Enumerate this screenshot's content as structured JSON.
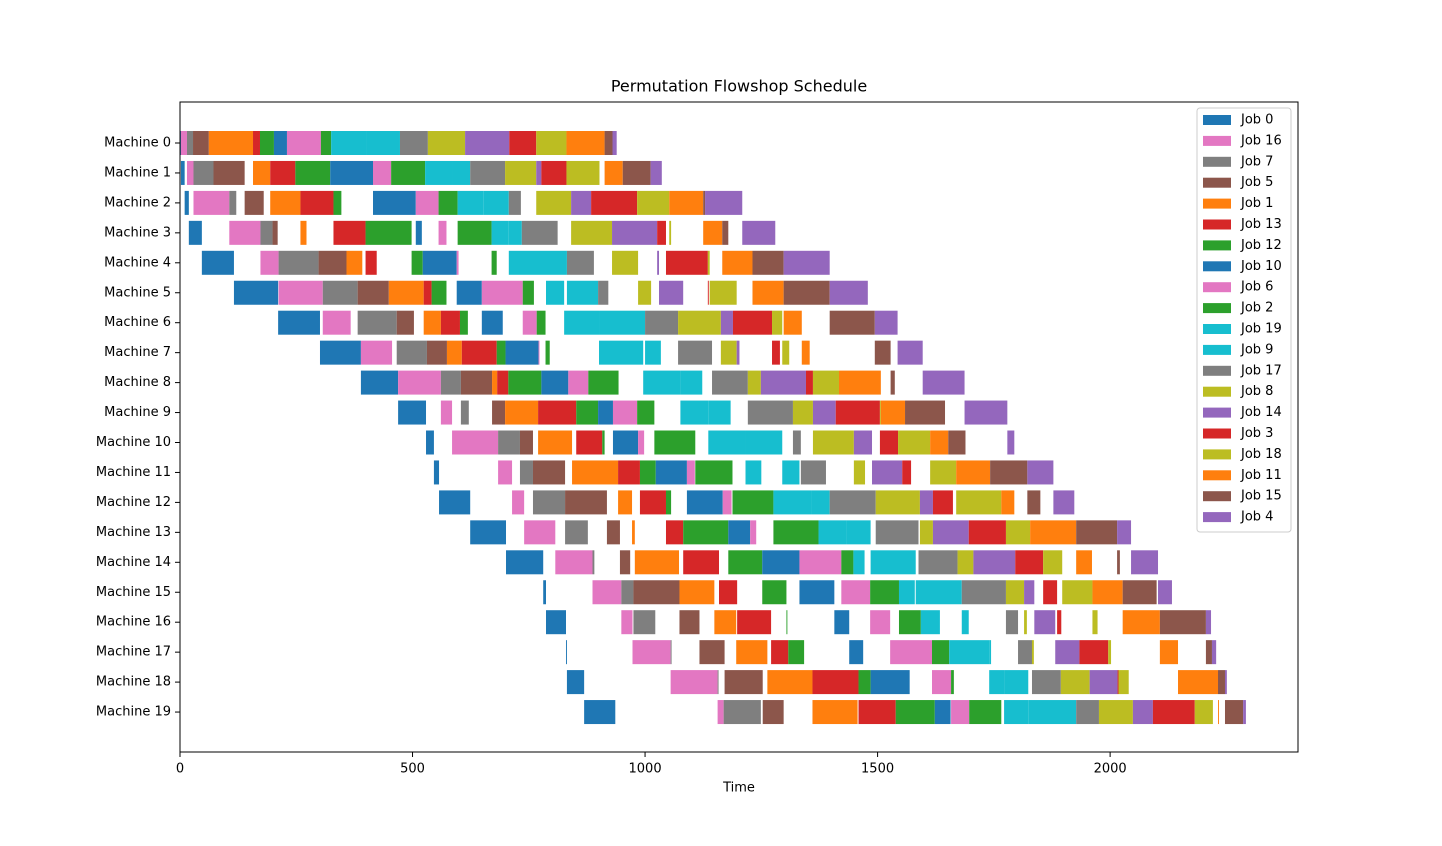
{
  "chart_data": {
    "type": "gantt",
    "title": "Permutation Flowshop Schedule",
    "x_label": "Time",
    "categories": [
      "Machine 0",
      "Machine 1",
      "Machine 2",
      "Machine 3",
      "Machine 4",
      "Machine 5",
      "Machine 6",
      "Machine 7",
      "Machine 8",
      "Machine 9",
      "Machine 10",
      "Machine 11",
      "Machine 12",
      "Machine 13",
      "Machine 14",
      "Machine 15",
      "Machine 16",
      "Machine 17",
      "Machine 18",
      "Machine 19"
    ],
    "xlim": [
      0,
      2404
    ],
    "xticks": [
      0,
      500,
      1000,
      1500,
      2000
    ],
    "legend": "upper right",
    "series": [
      {
        "name": "Job 0",
        "color": "#1f77b4",
        "values": [
          2,
          8,
          9,
          28,
          69,
          95,
          90,
          88,
          80,
          60,
          17,
          11,
          67,
          77,
          80,
          6,
          43,
          2,
          37,
          67
        ]
      },
      {
        "name": "Job 16",
        "color": "#e377c2",
        "values": [
          13,
          14,
          77,
          67,
          39,
          95,
          60,
          67,
          92,
          24,
          99,
          30,
          26,
          67,
          80,
          62,
          24,
          82,
          101,
          13
        ]
      },
      {
        "name": "Job 7",
        "color": "#7f7f7f",
        "values": [
          13,
          43,
          15,
          26,
          86,
          75,
          84,
          65,
          43,
          17,
          47,
          28,
          69,
          49,
          4,
          26,
          47,
          2,
          2,
          80
        ]
      },
      {
        "name": "Job 5",
        "color": "#8c564b",
        "values": [
          34,
          67,
          41,
          11,
          60,
          67,
          37,
          43,
          67,
          28,
          28,
          69,
          90,
          28,
          22,
          99,
          43,
          54,
          82,
          45
        ]
      },
      {
        "name": "Job 1",
        "color": "#ff7f0e",
        "values": [
          95,
          37,
          65,
          13,
          34,
          75,
          37,
          32,
          11,
          71,
          73,
          99,
          30,
          6,
          95,
          75,
          47,
          67,
          97,
          97
        ]
      },
      {
        "name": "Job 13",
        "color": "#d62728",
        "values": [
          15,
          54,
          71,
          69,
          24,
          17,
          41,
          75,
          24,
          82,
          56,
          47,
          56,
          37,
          77,
          39,
          73,
          37,
          99,
          80
        ]
      },
      {
        "name": "Job 12",
        "color": "#2ca02c",
        "values": [
          30,
          75,
          17,
          99,
          24,
          32,
          17,
          19,
          71,
          47,
          5,
          34,
          11,
          97,
          73,
          52,
          2,
          34,
          26,
          84
        ]
      },
      {
        "name": "Job 10",
        "color": "#1f77b4",
        "values": [
          28,
          92,
          92,
          13,
          73,
          54,
          45,
          71,
          58,
          32,
          54,
          67,
          77,
          47,
          80,
          75,
          32,
          30,
          84,
          34
        ]
      },
      {
        "name": "Job 6",
        "color": "#e377c2",
        "values": [
          73,
          39,
          49,
          17,
          4,
          88,
          30,
          2,
          43,
          52,
          13,
          17,
          19,
          13,
          90,
          62,
          43,
          90,
          41,
          39
        ]
      },
      {
        "name": "Job 2",
        "color": "#2ca02c",
        "values": [
          22,
          73,
          41,
          73,
          11,
          24,
          19,
          9,
          65,
          37,
          88,
          80,
          88,
          97,
          26,
          62,
          47,
          37,
          6,
          69
        ]
      },
      {
        "name": "Job 19",
        "color": "#17becf",
        "values": [
          75,
          60,
          55,
          37,
          80,
          39,
          75,
          95,
          80,
          60,
          80,
          34,
          82,
          60,
          24,
          34,
          41,
          86,
          32,
          52
        ]
      },
      {
        "name": "Job 9",
        "color": "#17becf",
        "values": [
          73,
          37,
          55,
          28,
          45,
          67,
          99,
          34,
          47,
          48,
          79,
          37,
          39,
          52,
          97,
          99,
          15,
          4,
          52,
          103
        ]
      },
      {
        "name": "Job 17",
        "color": "#7f7f7f",
        "values": [
          60,
          75,
          26,
          77,
          58,
          22,
          71,
          73,
          77,
          97,
          17,
          54,
          99,
          92,
          84,
          95,
          26,
          30,
          62,
          49
        ]
      },
      {
        "name": "Job 8",
        "color": "#bcbd22",
        "values": [
          80,
          67,
          75,
          88,
          56,
          28,
          92,
          34,
          28,
          43,
          88,
          24,
          95,
          28,
          34,
          39,
          6,
          4,
          62,
          73
        ]
      },
      {
        "name": "Job 14",
        "color": "#9467bd",
        "values": [
          95,
          11,
          43,
          97,
          4,
          52,
          26,
          6,
          97,
          49,
          39,
          65,
          28,
          77,
          90,
          22,
          45,
          52,
          60,
          43
        ]
      },
      {
        "name": "Job 3",
        "color": "#d62728",
        "values": [
          58,
          54,
          99,
          19,
          90,
          2,
          84,
          17,
          15,
          95,
          39,
          19,
          43,
          80,
          60,
          30,
          9,
          62,
          2,
          90
        ]
      },
      {
        "name": "Job 18",
        "color": "#bcbd22",
        "values": [
          65,
          71,
          69,
          4,
          4,
          58,
          22,
          15,
          56,
          2,
          69,
          56,
          97,
          52,
          41,
          65,
          11,
          6,
          22,
          39
        ]
      },
      {
        "name": "Job 11",
        "color": "#ff7f0e",
        "values": [
          82,
          39,
          73,
          41,
          65,
          67,
          39,
          17,
          90,
          52,
          39,
          73,
          28,
          99,
          34,
          65,
          80,
          39,
          86,
          2
        ]
      },
      {
        "name": "Job 15",
        "color": "#8c564b",
        "values": [
          17,
          60,
          4,
          13,
          67,
          99,
          97,
          34,
          9,
          86,
          37,
          80,
          28,
          88,
          6,
          73,
          99,
          13,
          15,
          39
        ]
      },
      {
        "name": "Job 4",
        "color": "#9467bd",
        "values": [
          9,
          24,
          80,
          71,
          99,
          82,
          49,
          54,
          90,
          92,
          15,
          56,
          45,
          30,
          58,
          30,
          11,
          9,
          4,
          6
        ]
      }
    ]
  }
}
